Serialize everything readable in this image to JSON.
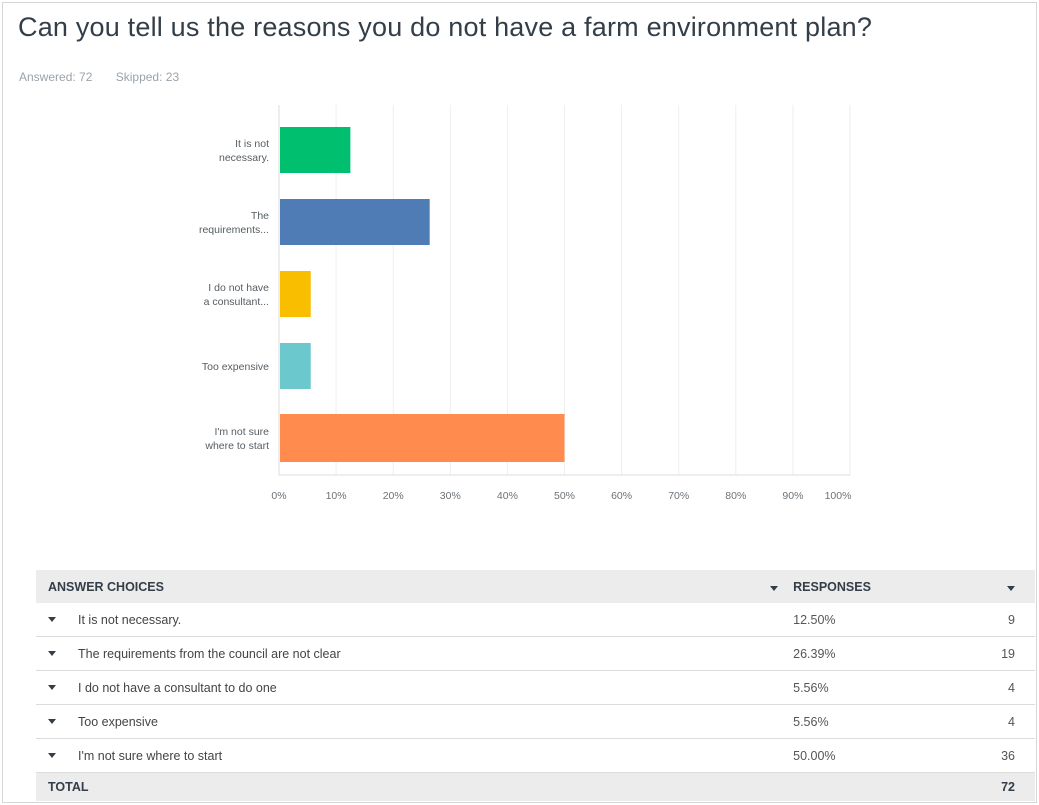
{
  "question": {
    "title": "Can you tell us the reasons you do not have a farm environment plan?",
    "answered": "Answered: 72",
    "skipped": "Skipped: 23"
  },
  "chart_data": {
    "type": "bar",
    "orientation": "horizontal",
    "categories": [
      [
        "It is not",
        "necessary."
      ],
      [
        "The",
        "requirements..."
      ],
      [
        "I do not have",
        "a consultant..."
      ],
      [
        "Too expensive"
      ],
      [
        "I'm not sure",
        "where to start"
      ]
    ],
    "values": [
      12.5,
      26.39,
      5.56,
      5.56,
      50.0
    ],
    "colors": [
      "#00bf6f",
      "#507cb6",
      "#f9be00",
      "#6bc8cd",
      "#ff8b4f"
    ],
    "xlim": [
      0,
      100
    ],
    "xticks": [
      "0%",
      "10%",
      "20%",
      "30%",
      "40%",
      "50%",
      "60%",
      "70%",
      "80%",
      "90%",
      "100%"
    ],
    "grid": true
  },
  "table": {
    "header": {
      "choices": "ANSWER CHOICES",
      "responses": "RESPONSES"
    },
    "rows": [
      {
        "label": "It is not necessary.",
        "percent": "12.50%",
        "count": "9"
      },
      {
        "label": "The requirements from the council are not clear",
        "percent": "26.39%",
        "count": "19"
      },
      {
        "label": "I do not have a consultant to do one",
        "percent": "5.56%",
        "count": "4"
      },
      {
        "label": "Too expensive",
        "percent": "5.56%",
        "count": "4"
      },
      {
        "label": "I'm not sure where to start",
        "percent": "50.00%",
        "count": "36"
      }
    ],
    "total": {
      "label": "TOTAL",
      "count": "72"
    }
  }
}
